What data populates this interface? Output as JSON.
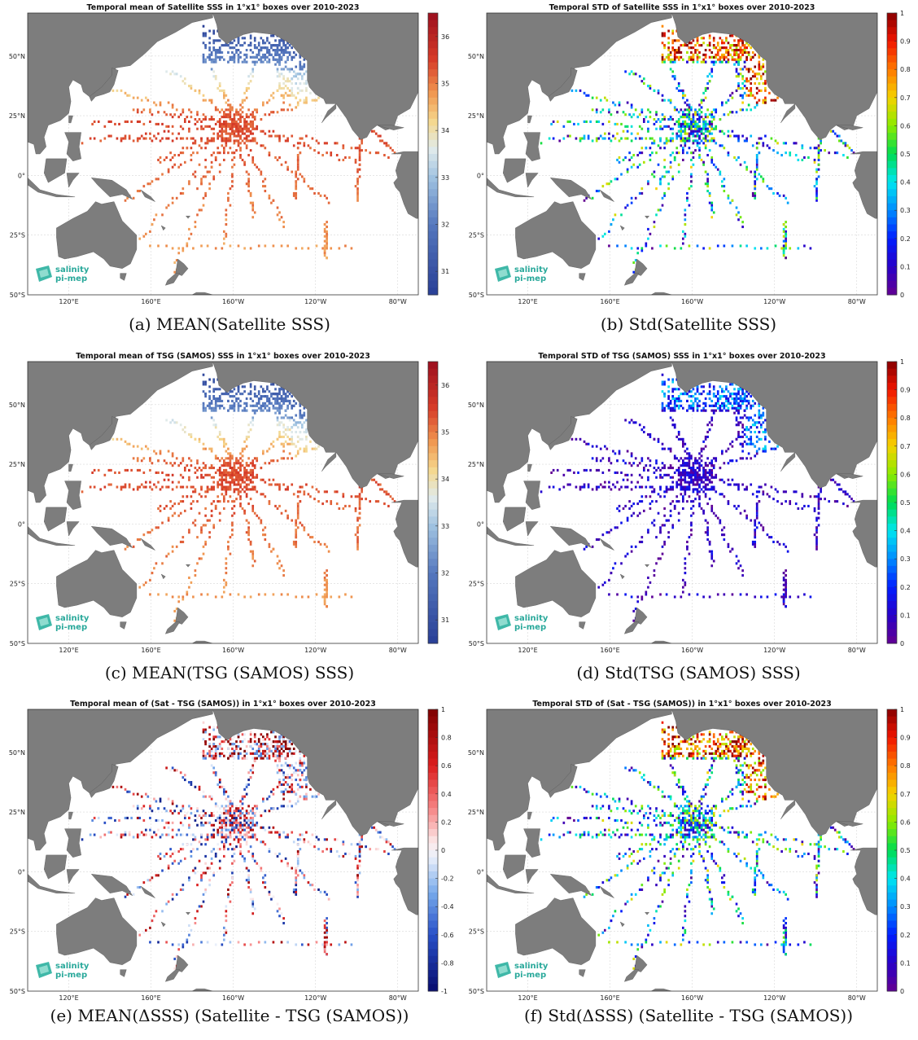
{
  "panels": [
    {
      "id": "a",
      "title": "Temporal mean of Satellite SSS in 1°x1° boxes over 2010-2023",
      "caption": "(a) MEAN(Satellite SSS)",
      "scale": "sss",
      "colorbar_ticks": [
        "36",
        "35",
        "34",
        "33",
        "32",
        "31"
      ],
      "colorbar_range": [
        30.5,
        36.5
      ]
    },
    {
      "id": "b",
      "title": "Temporal STD of Satellite SSS in 1°x1° boxes over 2010-2023",
      "caption": "(b) Std(Satellite SSS)",
      "scale": "std",
      "colorbar_ticks": [
        "1",
        "0.9",
        "0.8",
        "0.7",
        "0.6",
        "0.5",
        "0.4",
        "0.3",
        "0.2",
        "0.1",
        "0"
      ],
      "colorbar_range": [
        0,
        1
      ]
    },
    {
      "id": "c",
      "title": "Temporal mean of TSG (SAMOS) SSS in 1°x1° boxes over 2010-2023",
      "caption": "(c) MEAN(TSG (SAMOS) SSS)",
      "scale": "sss",
      "colorbar_ticks": [
        "36",
        "35",
        "34",
        "33",
        "32",
        "31"
      ],
      "colorbar_range": [
        30.5,
        36.5
      ]
    },
    {
      "id": "d",
      "title": "Temporal STD of TSG (SAMOS) SSS in 1°x1° boxes over 2010-2023",
      "caption": "(d) Std(TSG (SAMOS) SSS)",
      "scale": "std",
      "colorbar_ticks": [
        "1",
        "0.9",
        "0.8",
        "0.7",
        "0.6",
        "0.5",
        "0.4",
        "0.3",
        "0.2",
        "0.1",
        "0"
      ],
      "colorbar_range": [
        0,
        1
      ]
    },
    {
      "id": "e",
      "title": "Temporal mean of (Sat - TSG (SAMOS)) in 1°x1° boxes over 2010-2023",
      "caption": "(e) MEAN(ΔSSS) (Satellite - TSG (SAMOS))",
      "scale": "diff",
      "colorbar_ticks": [
        "1",
        "0.8",
        "0.6",
        "0.4",
        "0.2",
        "0",
        "-0.2",
        "-0.4",
        "-0.6",
        "-0.8",
        "-1"
      ],
      "colorbar_range": [
        -1,
        1
      ]
    },
    {
      "id": "f",
      "title": "Temporal STD of (Sat - TSG (SAMOS)) in 1°x1° boxes over 2010-2023",
      "caption": "(f) Std(ΔSSS) (Satellite - TSG (SAMOS))",
      "scale": "std",
      "colorbar_ticks": [
        "1",
        "0.9",
        "0.8",
        "0.7",
        "0.6",
        "0.5",
        "0.4",
        "0.3",
        "0.2",
        "0.1",
        "0"
      ],
      "colorbar_range": [
        0,
        1
      ]
    }
  ],
  "lat_labels": [
    "50°N",
    "25°N",
    "0°",
    "25°S",
    "50°S"
  ],
  "lon_labels": [
    "120°E",
    "160°E",
    "160°W",
    "120°W",
    "80°W"
  ],
  "logo": {
    "line1": "salinity",
    "line2": "pi-mep"
  },
  "map_colors": {
    "land": "#7d7d7d",
    "ocean": "#ffffff",
    "grid": "#d8d8d8"
  }
}
